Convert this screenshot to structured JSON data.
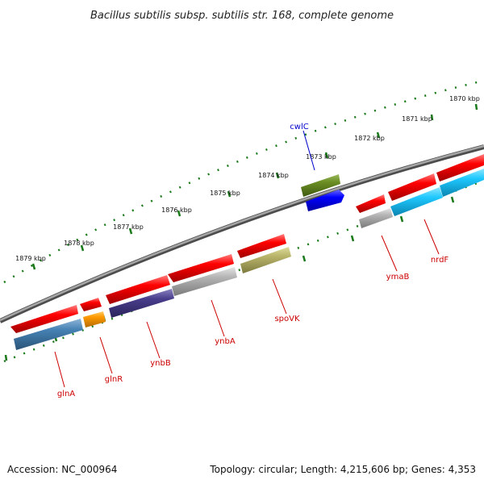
{
  "title": "Bacillus subtilis subsp. subtilis str. 168, complete genome",
  "footer": {
    "accession": "Accession: NC_000964",
    "summary": "Topology: circular; Length: 4,215,606 bp; Genes: 4,353"
  },
  "ruler": {
    "ticks": [
      {
        "label": "1870 kbp"
      },
      {
        "label": "1871 kbp"
      },
      {
        "label": "1872 kbp"
      },
      {
        "label": "1873 kbp"
      },
      {
        "label": "1874 kbp"
      },
      {
        "label": "1875 kbp"
      },
      {
        "label": "1876 kbp"
      },
      {
        "label": "1877 kbp"
      },
      {
        "label": "1878 kbp"
      },
      {
        "label": "1879 kbp"
      }
    ]
  },
  "genes": [
    {
      "label": "cwlC",
      "color": "#0000cc"
    },
    {
      "label": "ymaB",
      "color": "#cc0000"
    },
    {
      "label": "nrdF",
      "color": "#cc0000"
    },
    {
      "label": "spoVK",
      "color": "#cc0000"
    },
    {
      "label": "ynbA",
      "color": "#cc0000"
    },
    {
      "label": "ynbB",
      "color": "#cc0000"
    },
    {
      "label": "glnR",
      "color": "#cc0000"
    },
    {
      "label": "glnA",
      "color": "#cc0000"
    }
  ],
  "colors": {
    "backbone": "#808080",
    "ruler": "#1a7a1a",
    "cds_forward": "#ff0000",
    "blue": "#0000ff",
    "olive": "#6b8e23",
    "light_blue": "#1ec8ff",
    "steel_blue": "#4682b4",
    "orange": "#ff9900",
    "purple": "#483d8b",
    "gray": "#b4b4b4",
    "khaki": "#b8b46a"
  }
}
